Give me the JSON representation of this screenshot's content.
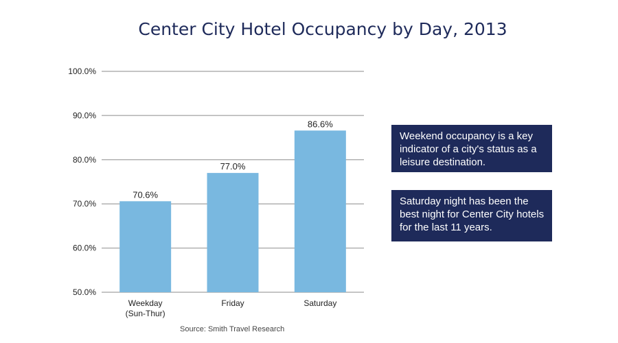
{
  "chart_data": {
    "type": "bar",
    "title": "Center City Hotel Occupancy by Day, 2013",
    "categories": [
      [
        "Weekday",
        "(Sun-Thur)"
      ],
      [
        "Friday"
      ],
      [
        "Saturday"
      ]
    ],
    "values": [
      70.6,
      77.0,
      86.6
    ],
    "value_labels": [
      "70.6%",
      "77.0%",
      "86.6%"
    ],
    "ylim": [
      50,
      100
    ],
    "yticks": [
      50,
      60,
      70,
      80,
      90,
      100
    ],
    "ytick_labels": [
      "50.0%",
      "60.0%",
      "70.0%",
      "80.0%",
      "90.0%",
      "100.0%"
    ],
    "grid": true,
    "colors": {
      "bar": "#79b8e0",
      "grid": "#b0b0b0",
      "callout": "#1e2a5a",
      "title": "#1e2a5a"
    }
  },
  "callouts": [
    "Weekend occupancy is a key indicator of a city's status as a leisure destination.",
    "Saturday night has been the best night for Center City hotels for the last 11 years."
  ],
  "source": "Source: Smith Travel Research"
}
